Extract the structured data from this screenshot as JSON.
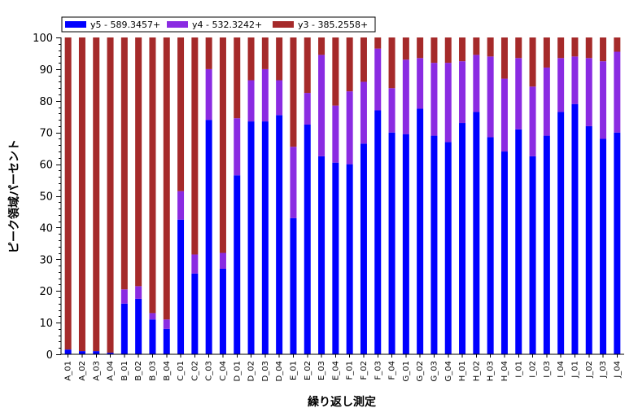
{
  "chart_data": {
    "type": "bar",
    "stacked": true,
    "title": "",
    "xlabel": "繰り返し測定",
    "ylabel": "ピーク領域パーセント",
    "ylim": [
      0,
      100
    ],
    "yticks": [
      0,
      10,
      20,
      30,
      40,
      50,
      60,
      70,
      80,
      90,
      100
    ],
    "legend_position": "top-left",
    "grid": false,
    "categories": [
      "A_01",
      "A_02",
      "A_03",
      "A_04",
      "B_01",
      "B_02",
      "B_03",
      "B_04",
      "C_01",
      "C_02",
      "C_03",
      "C_04",
      "D_01",
      "D_02",
      "D_03",
      "D_04",
      "E_01",
      "E_02",
      "E_03",
      "E_04",
      "F_01",
      "F_02",
      "F_03",
      "F_04",
      "G_01",
      "G_02",
      "G_03",
      "G_04",
      "H_01",
      "H_02",
      "H_03",
      "H_04",
      "I_01",
      "I_02",
      "I_03",
      "I_04",
      "J_01",
      "J_02",
      "J_03",
      "J_04"
    ],
    "series": [
      {
        "name": "y5 - 589.3457+",
        "color": "#0000ff",
        "values": [
          1.5,
          1,
          1,
          0.5,
          16,
          17.5,
          11,
          8,
          42.5,
          25.5,
          74,
          27,
          56.5,
          73.5,
          73.5,
          75.5,
          43,
          72.5,
          62.5,
          60.5,
          60,
          66.5,
          77,
          70,
          69.5,
          77.5,
          69,
          67,
          73,
          76.5,
          68.5,
          64,
          71,
          62.5,
          69,
          76.5,
          79,
          72,
          68,
          70
        ]
      },
      {
        "name": "y4 - 532.3242+",
        "color": "#8a2be2",
        "values": [
          0,
          0,
          0,
          0,
          4.5,
          4,
          2,
          3,
          9,
          6,
          16,
          5,
          18,
          13,
          16.5,
          11,
          22.5,
          10,
          32,
          18,
          23,
          19.5,
          19.5,
          14,
          23.5,
          16,
          23,
          25,
          19.5,
          18,
          25.5,
          23,
          22.5,
          22,
          21.5,
          17,
          15,
          21.5,
          24.5,
          25.5
        ]
      },
      {
        "name": "y3 - 385.2558+",
        "color": "#a52a2a",
        "values": [
          98.5,
          99,
          99,
          99.5,
          79.5,
          78.5,
          87,
          89,
          48.5,
          68.5,
          10,
          68,
          25.5,
          13.5,
          10,
          13.5,
          34.5,
          17.5,
          5.5,
          21.5,
          17,
          14,
          3.5,
          16,
          7,
          6.5,
          8,
          8,
          7.5,
          5.5,
          6,
          13,
          6.5,
          15.5,
          9.5,
          6.5,
          6,
          6.5,
          7.5,
          4.5
        ]
      }
    ]
  }
}
